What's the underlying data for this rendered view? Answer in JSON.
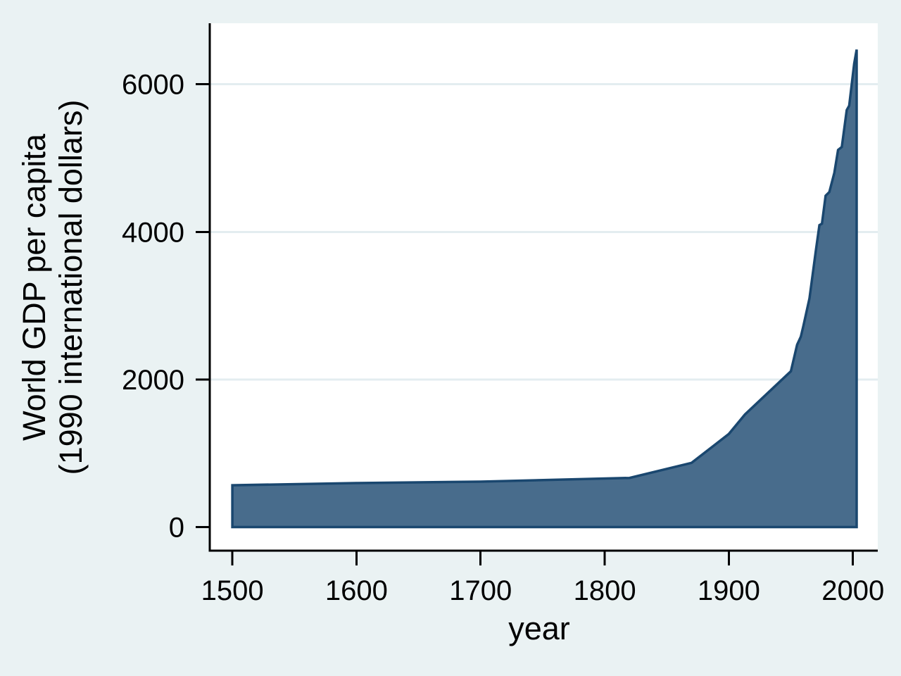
{
  "figure": {
    "background_color": "#eaf2f3",
    "plot_background_color": "#ffffff",
    "grid_color": "#e3edf0",
    "axis_color": "#000000",
    "text_color": "#000000"
  },
  "chart_data": {
    "type": "area",
    "title": "",
    "xlabel": "year",
    "ylabel_line1": "World GDP per capita",
    "ylabel_line2": "(1990 international dollars)",
    "legend": "none",
    "grid": "horizontal",
    "x_ticks": [
      1500,
      1600,
      1700,
      1800,
      1900,
      2000
    ],
    "y_ticks": [
      0,
      2000,
      4000,
      6000
    ],
    "xlim": [
      1481.8,
      2020
    ],
    "ylim": [
      -320,
      6827
    ],
    "baseline": 0,
    "area_fill_color": "#486c8c",
    "area_line_color": "#1a476f",
    "series": [
      {
        "name": "World GDP per capita (1990 international dollars)",
        "points": [
          [
            1500,
            566
          ],
          [
            1600,
            596
          ],
          [
            1700,
            615
          ],
          [
            1820,
            666
          ],
          [
            1870,
            870
          ],
          [
            1900,
            1261
          ],
          [
            1913,
            1525
          ],
          [
            1950,
            2111
          ],
          [
            1955,
            2470
          ],
          [
            1958,
            2580
          ],
          [
            1960,
            2720
          ],
          [
            1965,
            3100
          ],
          [
            1970,
            3730
          ],
          [
            1973,
            4091
          ],
          [
            1975,
            4110
          ],
          [
            1978,
            4490
          ],
          [
            1981,
            4540
          ],
          [
            1985,
            4800
          ],
          [
            1988,
            5110
          ],
          [
            1991,
            5150
          ],
          [
            1995,
            5650
          ],
          [
            1997,
            5710
          ],
          [
            1999,
            6000
          ],
          [
            2001,
            6280
          ],
          [
            2003,
            6470
          ]
        ]
      }
    ]
  }
}
